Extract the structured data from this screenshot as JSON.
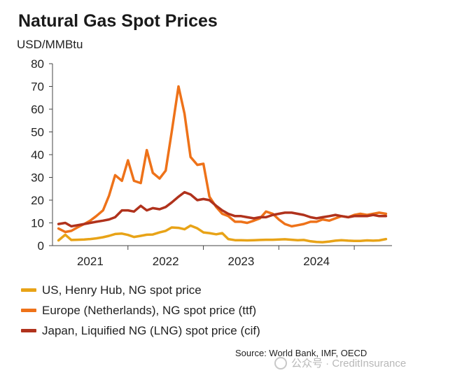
{
  "chart_data": {
    "type": "line",
    "title": "Natural Gas Spot Prices",
    "ylabel": "USD/MMBtu",
    "xlabel": "",
    "ylim": [
      0,
      80
    ],
    "yticks": [
      0,
      10,
      20,
      30,
      40,
      50,
      60,
      70,
      80
    ],
    "xlim": [
      2020.5,
      2025.0
    ],
    "x_tick_labels": [
      {
        "label": "2021",
        "x": 2021.0
      },
      {
        "label": "2022",
        "x": 2022.0
      },
      {
        "label": "2023",
        "x": 2023.0
      },
      {
        "label": "2024",
        "x": 2024.0
      }
    ],
    "grid": false,
    "legend_position": "bottom",
    "series": [
      {
        "name": "US, Henry Hub, NG spot price",
        "color": "#e8a317",
        "x": [
          2020.58,
          2020.67,
          2020.75,
          2020.83,
          2020.92,
          2021.0,
          2021.08,
          2021.17,
          2021.25,
          2021.33,
          2021.42,
          2021.5,
          2021.58,
          2021.67,
          2021.75,
          2021.83,
          2021.92,
          2022.0,
          2022.08,
          2022.17,
          2022.25,
          2022.33,
          2022.42,
          2022.5,
          2022.58,
          2022.67,
          2022.75,
          2022.83,
          2022.92,
          2023.0,
          2023.08,
          2023.17,
          2023.25,
          2023.33,
          2023.42,
          2023.5,
          2023.58,
          2023.67,
          2023.75,
          2023.83,
          2023.92,
          2024.0,
          2024.08,
          2024.17,
          2024.25,
          2024.33,
          2024.42,
          2024.5,
          2024.58,
          2024.67,
          2024.75,
          2024.83,
          2024.92
        ],
        "y": [
          2.3,
          4.8,
          2.5,
          2.6,
          2.7,
          2.9,
          3.2,
          3.7,
          4.3,
          5.1,
          5.3,
          4.7,
          3.8,
          4.3,
          4.8,
          4.9,
          5.8,
          6.5,
          8.0,
          7.8,
          7.2,
          8.8,
          7.6,
          5.8,
          5.5,
          5.0,
          5.5,
          2.9,
          2.4,
          2.4,
          2.3,
          2.4,
          2.5,
          2.6,
          2.6,
          2.7,
          2.8,
          2.6,
          2.4,
          2.5,
          1.9,
          1.6,
          1.5,
          1.8,
          2.2,
          2.4,
          2.2,
          2.1,
          2.1,
          2.3,
          2.2,
          2.3,
          2.9
        ]
      },
      {
        "name": "Europe (Netherlands), NG spot price (ttf)",
        "color": "#ee7219",
        "x": [
          2020.58,
          2020.67,
          2020.75,
          2020.83,
          2020.92,
          2021.0,
          2021.08,
          2021.17,
          2021.25,
          2021.33,
          2021.42,
          2021.5,
          2021.58,
          2021.67,
          2021.75,
          2021.83,
          2021.92,
          2022.0,
          2022.08,
          2022.17,
          2022.25,
          2022.33,
          2022.42,
          2022.5,
          2022.58,
          2022.67,
          2022.75,
          2022.83,
          2022.92,
          2023.0,
          2023.08,
          2023.17,
          2023.25,
          2023.33,
          2023.42,
          2023.5,
          2023.58,
          2023.67,
          2023.75,
          2023.83,
          2023.92,
          2024.0,
          2024.08,
          2024.17,
          2024.25,
          2024.33,
          2024.42,
          2024.5,
          2024.58,
          2024.67,
          2024.75,
          2024.83,
          2024.92
        ],
        "y": [
          7.5,
          6.0,
          6.5,
          8.0,
          9.5,
          11.0,
          13.0,
          15.5,
          22.0,
          31.0,
          28.5,
          37.5,
          28.5,
          27.5,
          42.0,
          32.0,
          29.5,
          33.0,
          50.0,
          70.0,
          58.0,
          39.0,
          35.5,
          36.0,
          21.5,
          17.0,
          14.0,
          13.0,
          10.5,
          10.5,
          10.0,
          11.0,
          12.0,
          15.0,
          14.0,
          11.5,
          9.5,
          8.5,
          9.0,
          9.5,
          10.5,
          10.5,
          11.5,
          11.0,
          12.0,
          13.0,
          12.5,
          13.5,
          14.0,
          13.5,
          14.0,
          14.5,
          14.0
        ]
      },
      {
        "name": "Japan, Liquified NG (LNG) spot price (cif)",
        "color": "#b0321c",
        "x": [
          2020.58,
          2020.67,
          2020.75,
          2020.83,
          2020.92,
          2021.0,
          2021.08,
          2021.17,
          2021.25,
          2021.33,
          2021.42,
          2021.5,
          2021.58,
          2021.67,
          2021.75,
          2021.83,
          2021.92,
          2022.0,
          2022.08,
          2022.17,
          2022.25,
          2022.33,
          2022.42,
          2022.5,
          2022.58,
          2022.67,
          2022.75,
          2022.83,
          2022.92,
          2023.0,
          2023.08,
          2023.17,
          2023.25,
          2023.33,
          2023.42,
          2023.5,
          2023.58,
          2023.67,
          2023.75,
          2023.83,
          2023.92,
          2024.0,
          2024.08,
          2024.17,
          2024.25,
          2024.33,
          2024.42,
          2024.5,
          2024.58,
          2024.67,
          2024.75,
          2024.83,
          2024.92
        ],
        "y": [
          9.5,
          10.0,
          8.5,
          9.0,
          9.5,
          10.0,
          10.5,
          11.0,
          11.5,
          12.5,
          15.5,
          15.5,
          15.0,
          17.5,
          15.5,
          16.5,
          16.0,
          17.0,
          19.0,
          21.5,
          23.5,
          22.5,
          20.0,
          20.5,
          20.0,
          17.5,
          15.5,
          14.0,
          13.0,
          13.0,
          12.5,
          12.0,
          12.5,
          12.5,
          13.5,
          14.0,
          14.5,
          14.5,
          14.0,
          13.5,
          12.5,
          12.0,
          12.5,
          13.0,
          13.5,
          13.0,
          12.5,
          13.0,
          13.0,
          13.0,
          13.5,
          13.0,
          13.0
        ]
      }
    ]
  },
  "source": "Source: World Bank, IMF, OECD",
  "watermark": "公众号 · CreditInsurance"
}
